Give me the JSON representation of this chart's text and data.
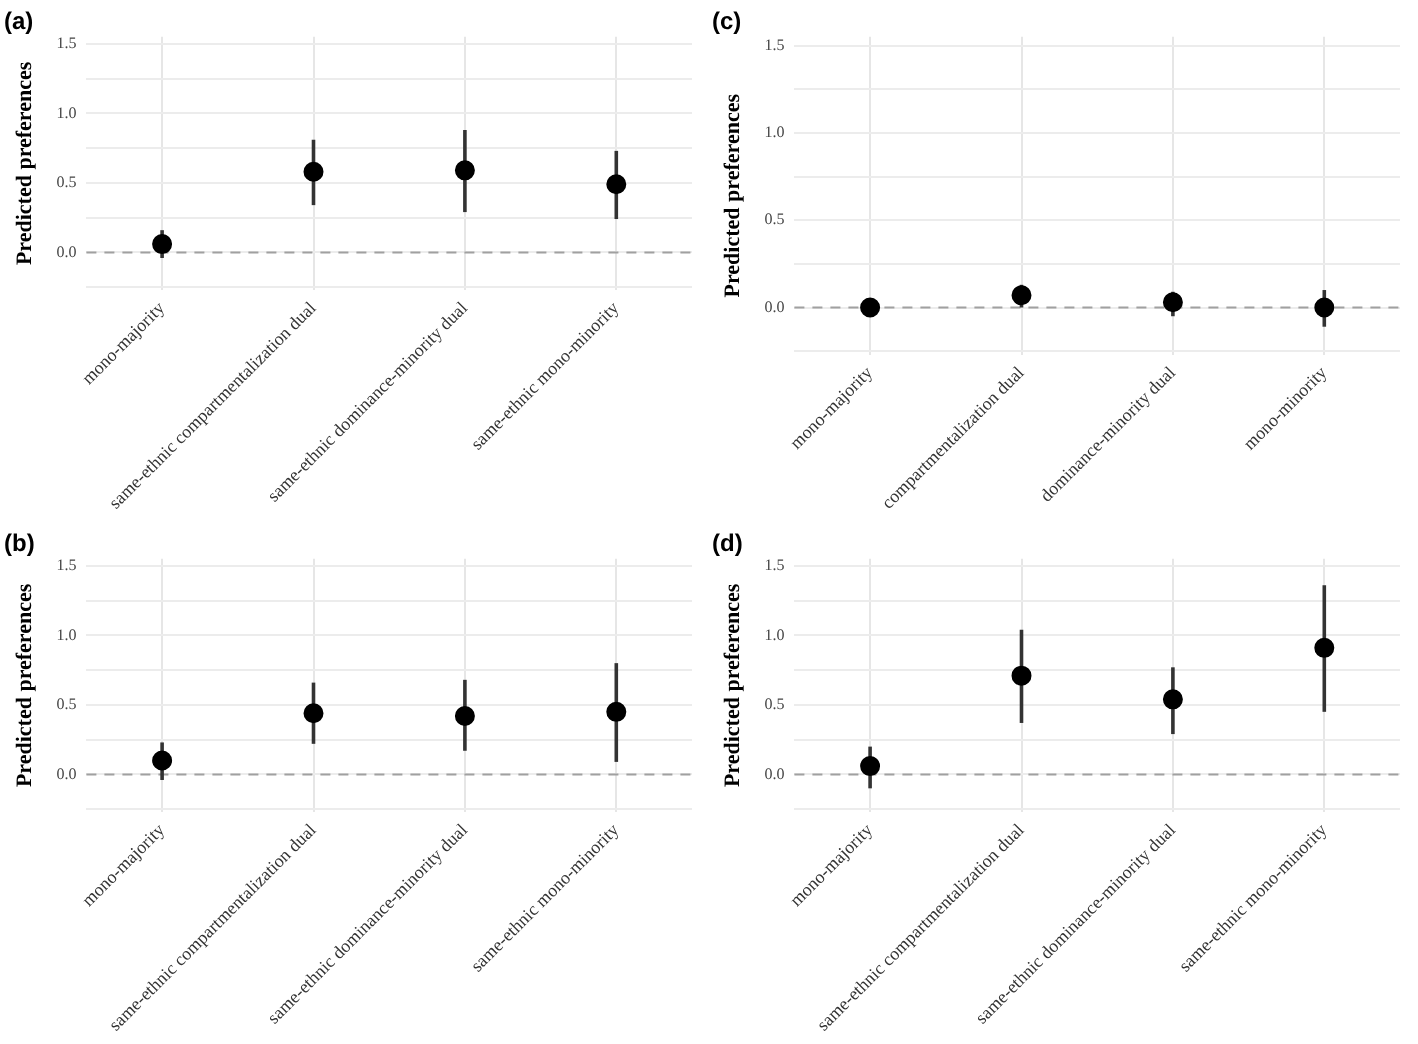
{
  "chart_data": [
    {
      "type": "scatter",
      "title": "(a)",
      "ylabel": "Predicted preferences",
      "categories": [
        "mono-majority",
        "same-ethnic compartmentalization dual",
        "same-ethnic dominance-minority dual",
        "same-ethnic mono-minority"
      ],
      "series": [
        {
          "color": "#000000",
          "values": [
            0.06,
            0.58,
            0.59,
            0.49
          ],
          "errors": [
            [
              -0.04,
              0.16
            ],
            [
              0.34,
              0.81
            ],
            [
              0.29,
              0.88
            ],
            [
              0.24,
              0.73
            ]
          ]
        }
      ],
      "ylim": [
        -0.27,
        1.55
      ],
      "yticks": [
        {
          "value": -0.25,
          "label": null
        },
        {
          "value": 0,
          "label": "0.0"
        },
        {
          "value": 0.25,
          "label": null
        },
        {
          "value": 0.5,
          "label": "0.5"
        },
        {
          "value": 0.75,
          "label": null
        },
        {
          "value": 1,
          "label": "1.0"
        },
        {
          "value": 1.25,
          "label": null
        },
        {
          "value": 1.5,
          "label": "1.5"
        }
      ],
      "grid": true,
      "marker": "circle",
      "ref_lines": [
        {
          "axis": "y",
          "value": 0,
          "line_style": "dashed",
          "color": "#a0a0a0"
        }
      ]
    },
    {
      "type": "scatter",
      "title": "(c)",
      "ylabel": "Predicted preferences",
      "categories": [
        "mono-majority",
        "compartmentalization dual",
        "dominance-minority dual",
        "mono-minority"
      ],
      "series": [
        {
          "color": "#000000",
          "values": [
            0.0,
            0.07,
            0.03,
            0.0
          ],
          "errors": [
            null,
            [
              0.0,
              0.13
            ],
            [
              -0.05,
              0.09
            ],
            [
              -0.11,
              0.1
            ]
          ]
        }
      ],
      "ylim": [
        -0.27,
        1.55
      ],
      "yticks": [
        {
          "value": -0.25,
          "label": null
        },
        {
          "value": 0,
          "label": "0.0"
        },
        {
          "value": 0.25,
          "label": null
        },
        {
          "value": 0.5,
          "label": "0.5"
        },
        {
          "value": 0.75,
          "label": null
        },
        {
          "value": 1,
          "label": "1.0"
        },
        {
          "value": 1.25,
          "label": null
        },
        {
          "value": 1.5,
          "label": "1.5"
        }
      ],
      "grid": true,
      "marker": "circle",
      "ref_lines": [
        {
          "axis": "y",
          "value": 0,
          "line_style": "dashed",
          "color": "#a0a0a0"
        }
      ]
    },
    {
      "type": "scatter",
      "title": "(b)",
      "ylabel": "Predicted preferences",
      "categories": [
        "mono-majority",
        "same-ethnic compartmentalization dual",
        "same-ethnic dominance-minority dual",
        "same-ethnic mono-minority"
      ],
      "series": [
        {
          "color": "#000000",
          "values": [
            0.1,
            0.44,
            0.42,
            0.45
          ],
          "errors": [
            [
              -0.04,
              0.23
            ],
            [
              0.22,
              0.66
            ],
            [
              0.17,
              0.68
            ],
            [
              0.09,
              0.8
            ]
          ]
        }
      ],
      "ylim": [
        -0.27,
        1.55
      ],
      "yticks": [
        {
          "value": -0.25,
          "label": null
        },
        {
          "value": 0,
          "label": "0.0"
        },
        {
          "value": 0.25,
          "label": null
        },
        {
          "value": 0.5,
          "label": "0.5"
        },
        {
          "value": 0.75,
          "label": null
        },
        {
          "value": 1,
          "label": "1.0"
        },
        {
          "value": 1.25,
          "label": null
        },
        {
          "value": 1.5,
          "label": "1.5"
        }
      ],
      "grid": true,
      "marker": "circle",
      "ref_lines": [
        {
          "axis": "y",
          "value": 0,
          "line_style": "dashed",
          "color": "#a0a0a0"
        }
      ]
    },
    {
      "type": "scatter",
      "title": "(d)",
      "ylabel": "Predicted preferences",
      "categories": [
        "mono-majority",
        "same-ethnic compartmentalization dual",
        "same-ethnic dominance-minority dual",
        "same-ethnic mono-minority"
      ],
      "series": [
        {
          "color": "#000000",
          "values": [
            0.06,
            0.71,
            0.54,
            0.91
          ],
          "errors": [
            [
              -0.1,
              0.2
            ],
            [
              0.37,
              1.04
            ],
            [
              0.29,
              0.77
            ],
            [
              0.45,
              1.36
            ]
          ]
        }
      ],
      "ylim": [
        -0.27,
        1.55
      ],
      "yticks": [
        {
          "value": -0.25,
          "label": null
        },
        {
          "value": 0,
          "label": "0.0"
        },
        {
          "value": 0.25,
          "label": null
        },
        {
          "value": 0.5,
          "label": "0.5"
        },
        {
          "value": 0.75,
          "label": null
        },
        {
          "value": 1,
          "label": "1.0"
        },
        {
          "value": 1.25,
          "label": null
        },
        {
          "value": 1.5,
          "label": "1.5"
        }
      ],
      "grid": true,
      "marker": "circle",
      "ref_lines": [
        {
          "axis": "y",
          "value": 0,
          "line_style": "dashed",
          "color": "#a0a0a0"
        }
      ]
    }
  ]
}
